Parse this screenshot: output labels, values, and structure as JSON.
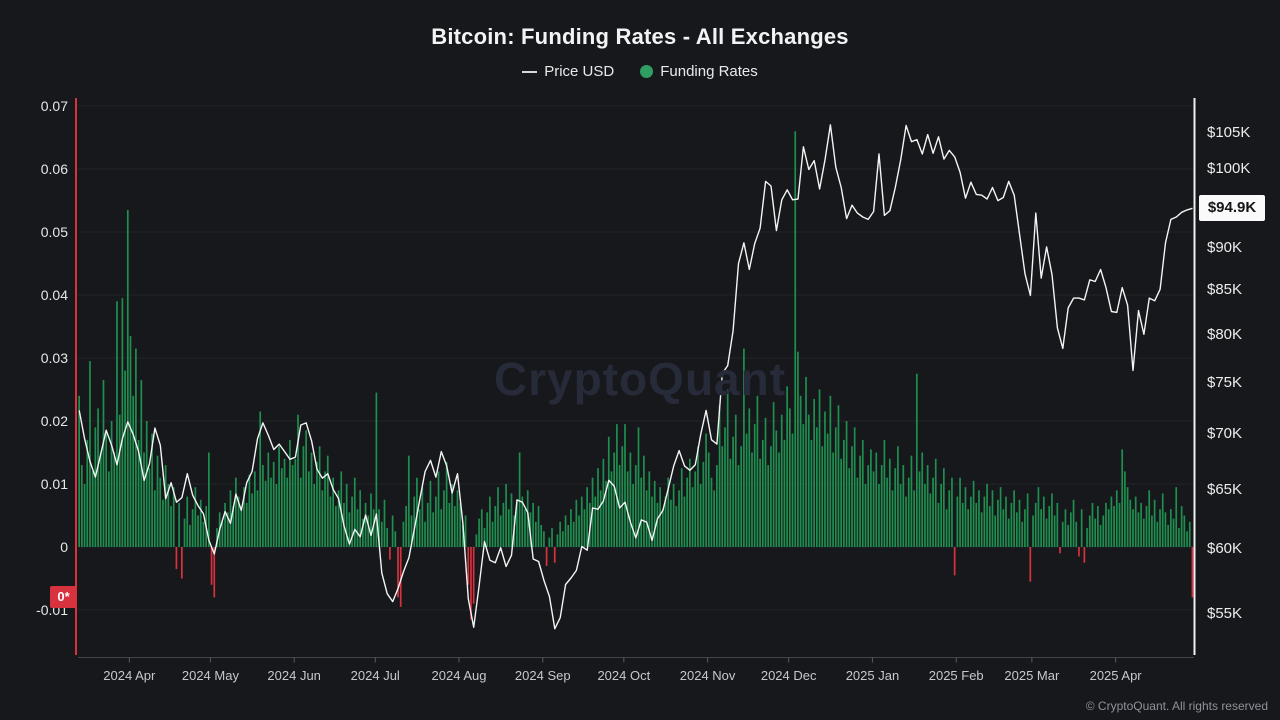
{
  "title": "Bitcoin: Funding Rates - All Exchanges",
  "watermark": "CryptoQuant",
  "footer": "© CryptoQuant. All rights reserved",
  "legend": [
    {
      "label": "Price USD",
      "marker": "line",
      "color": "#d8d9db"
    },
    {
      "label": "Funding Rates",
      "marker": "dot",
      "color": "#2f9e63"
    }
  ],
  "badges": {
    "funding_current": "0*",
    "price_current": "$94.9K"
  },
  "colors": {
    "background": "#17181b",
    "grid": "#222329",
    "funding_positive": "#1e8f4f",
    "funding_negative": "#d7323e",
    "price_line": "#f4f4f5",
    "left_axis_line": "#d7323e",
    "right_axis_line": "#eef0f2",
    "bottom_axis_line": "#43444a",
    "badge_funding_bg": "#d7323e",
    "badge_price_bg": "#fafafa"
  },
  "axes": {
    "left_ticks": [
      {
        "label": "0.07",
        "v": 0.07
      },
      {
        "label": "0.06",
        "v": 0.06
      },
      {
        "label": "0.05",
        "v": 0.05
      },
      {
        "label": "0.04",
        "v": 0.04
      },
      {
        "label": "0.03",
        "v": 0.03
      },
      {
        "label": "0.02",
        "v": 0.02
      },
      {
        "label": "0.01",
        "v": 0.01
      },
      {
        "label": "0",
        "v": 0
      },
      {
        "label": "-0.01",
        "v": -0.01
      }
    ],
    "right_ticks": [
      {
        "label": "$105K",
        "k": 105
      },
      {
        "label": "$100K",
        "k": 100
      },
      {
        "label": "$90K",
        "k": 90
      },
      {
        "label": "$85K",
        "k": 85
      },
      {
        "label": "$80K",
        "k": 80
      },
      {
        "label": "$75K",
        "k": 75
      },
      {
        "label": "$70K",
        "k": 70
      },
      {
        "label": "$65K",
        "k": 65
      },
      {
        "label": "$60K",
        "k": 60
      },
      {
        "label": "$55K",
        "k": 55
      }
    ],
    "x_ticks": [
      {
        "label": "2024 Apr",
        "day": 19
      },
      {
        "label": "2024 May",
        "day": 49
      },
      {
        "label": "2024 Jun",
        "day": 80
      },
      {
        "label": "2024 Jul",
        "day": 110
      },
      {
        "label": "2024 Aug",
        "day": 141
      },
      {
        "label": "2024 Sep",
        "day": 172
      },
      {
        "label": "2024 Oct",
        "day": 202
      },
      {
        "label": "2024 Nov",
        "day": 233
      },
      {
        "label": "2024 Dec",
        "day": 263
      },
      {
        "label": "2025 Jan",
        "day": 294
      },
      {
        "label": "2025 Feb",
        "day": 325
      },
      {
        "label": "2025 Mar",
        "day": 353
      },
      {
        "label": "2025 Apr",
        "day": 384
      }
    ]
  },
  "chart_data": {
    "type": "mixed",
    "title": "Bitcoin: Funding Rates - All Exchanges",
    "left_axis": {
      "series": "Funding Rates",
      "range": [
        -0.015,
        0.07
      ],
      "ticks": [
        0.07,
        0.06,
        0.05,
        0.04,
        0.03,
        0.02,
        0.01,
        0,
        -0.01
      ]
    },
    "right_axis": {
      "series": "Price USD",
      "scale": "log",
      "ticks_usd_k": [
        105,
        100,
        90,
        85,
        80,
        75,
        70,
        65,
        60,
        55
      ]
    },
    "x_axis": {
      "ticks": [
        "2024 Apr",
        "2024 May",
        "2024 Jun",
        "2024 Jul",
        "2024 Aug",
        "2024 Sep",
        "2024 Oct",
        "2024 Nov",
        "2024 Dec",
        "2025 Jan",
        "2025 Feb",
        "2025 Mar",
        "2025 Apr"
      ]
    },
    "legend_position": "top-center",
    "grid": true,
    "last_values": {
      "funding_rate": -0.008,
      "funding_label": "0*",
      "price_usd_k": 94.9,
      "price_label": "$94.9K"
    },
    "series": [
      {
        "name": "Funding Rates",
        "type": "bar",
        "cadence_days": 1,
        "unit": 0.001,
        "note": "values are funding rate x1000, estimated from bars; day 0 = chart left edge (mid-March 2024)",
        "values": [
          24,
          13,
          10,
          17,
          29.5,
          12,
          19,
          22,
          15,
          26.5,
          18,
          12,
          20,
          15,
          39,
          21,
          39.5,
          28,
          53.5,
          33.5,
          24,
          31.5,
          17,
          26.5,
          15,
          20,
          12.5,
          18,
          9,
          14.5,
          11,
          7.5,
          13,
          10,
          6.5,
          9.5,
          -3.5,
          7,
          -5,
          4.5,
          8,
          3.5,
          6,
          9.5,
          5,
          7.5,
          4,
          6.5,
          15,
          -6,
          -8,
          3,
          5.5,
          4,
          7,
          5.5,
          9,
          6.5,
          11,
          8,
          6,
          9.5,
          7,
          11.5,
          8.5,
          12,
          9,
          21.5,
          13,
          10.5,
          15,
          11,
          13.5,
          10,
          16,
          12.5,
          14,
          11,
          17,
          13,
          14,
          21,
          11,
          16,
          18.5,
          12,
          15,
          10,
          13.5,
          16,
          9,
          12,
          14.5,
          8,
          11,
          6.5,
          9,
          12,
          7,
          10,
          5.5,
          8,
          11,
          6,
          9,
          4.5,
          7,
          5,
          8.5,
          6,
          24.5,
          6,
          4,
          7.5,
          3,
          -2,
          5,
          2.5,
          -8,
          -9.5,
          4,
          6.5,
          14.5,
          5,
          8,
          11,
          6,
          9.5,
          4,
          7,
          10.5,
          5.5,
          8,
          12,
          6,
          9,
          13.5,
          7,
          10,
          6.5,
          9,
          7,
          3.5,
          5,
          -6,
          -11.5,
          -9,
          2,
          4.5,
          6,
          3,
          5.5,
          8,
          4,
          6.5,
          9.5,
          5,
          7,
          10,
          6,
          8.5,
          5,
          7.5,
          15,
          8,
          6,
          9,
          5.5,
          7,
          4,
          6.5,
          3.5,
          2.5,
          -3,
          1.5,
          3,
          -2.5,
          2,
          4,
          2.5,
          5,
          3.5,
          6,
          4,
          7.5,
          5,
          8,
          6,
          9.5,
          7,
          11,
          8,
          12.5,
          9,
          14,
          10.5,
          17.5,
          12,
          15,
          19.5,
          13,
          16,
          19.5,
          12,
          15,
          10,
          13,
          19,
          11,
          14.5,
          9,
          12,
          8,
          10.5,
          7,
          9.5,
          6,
          8,
          11,
          7.5,
          10,
          6.5,
          9,
          12.5,
          8,
          11,
          14,
          9.5,
          12,
          16,
          10,
          13.5,
          18,
          15,
          11,
          9,
          13,
          22.5,
          16,
          19,
          25,
          14,
          17.5,
          21,
          13,
          16,
          31.5,
          18,
          22,
          15,
          19.5,
          24,
          14,
          17,
          20.5,
          13,
          16,
          23,
          18.5,
          15,
          21,
          17,
          25.5,
          22,
          18,
          66,
          31,
          24,
          19.5,
          27,
          21,
          17,
          23.5,
          19,
          25,
          16,
          21.5,
          18,
          24,
          15,
          19,
          22.5,
          14,
          17,
          20,
          12.5,
          16,
          19,
          11,
          14.5,
          17,
          10,
          13,
          15.5,
          12,
          15,
          10,
          13,
          17,
          11,
          14,
          9,
          12.5,
          16,
          10,
          13,
          8,
          11,
          14.5,
          9,
          27.5,
          12,
          15,
          10,
          13,
          8.5,
          11,
          14,
          7,
          10,
          12.5,
          6,
          9,
          11,
          -4.5,
          8,
          11,
          7,
          9.5,
          6,
          8,
          10.5,
          7,
          9,
          5.5,
          8,
          10,
          6.5,
          9,
          5,
          7.5,
          9.5,
          6,
          8,
          4.5,
          7,
          9,
          5.5,
          7.5,
          4,
          6,
          8.5,
          -5.5,
          5,
          7,
          9.5,
          6,
          8,
          4.5,
          6.5,
          8.5,
          5,
          7,
          -1,
          4,
          6,
          3.5,
          5.5,
          7.5,
          4,
          -1.5,
          6,
          -2.5,
          3,
          5,
          7,
          4.5,
          6.5,
          3.5,
          5,
          7,
          6,
          8,
          6.5,
          9,
          7,
          15.5,
          12,
          9.5,
          7.5,
          6,
          8,
          5.5,
          7,
          4.5,
          6.5,
          9,
          5,
          7.5,
          4,
          6,
          8.5,
          5.5,
          3.5,
          6,
          4.5,
          9.5,
          3,
          6.5,
          5,
          2.5,
          4,
          -8
        ]
      },
      {
        "name": "Price USD",
        "type": "line",
        "cadence_days": 2,
        "unit": "USD thousands",
        "note": "price in $K sampled every 2 days, estimated from line",
        "values": [
          72.3,
          69.6,
          67.5,
          66.1,
          68.2,
          70.4,
          69,
          67.2,
          69.6,
          71.2,
          70,
          68.4,
          65.8,
          67.3,
          70.6,
          69,
          64.2,
          65.6,
          63.9,
          64.3,
          66.4,
          64.5,
          63.6,
          62.9,
          60.7,
          59.6,
          61.6,
          63.1,
          62.1,
          64.6,
          63.2,
          65.6,
          66.6,
          69.6,
          71.1,
          69.9,
          68.6,
          69.1,
          68.4,
          67.7,
          67.9,
          70.9,
          71.1,
          69.4,
          66.8,
          66,
          66.4,
          65,
          64.2,
          61.9,
          60.4,
          61.6,
          61,
          62.8,
          61.1,
          62.9,
          58.1,
          56.5,
          55.9,
          56.9,
          58.2,
          59.3,
          61.6,
          64.1,
          66.6,
          67.6,
          66.1,
          68.4,
          67.1,
          64.7,
          66.4,
          62.1,
          56.1,
          54,
          57.1,
          60.6,
          59.1,
          58.9,
          60.1,
          58.6,
          59.5,
          64.1,
          63.9,
          63,
          59.2,
          59,
          57.5,
          56.3,
          53.9,
          54.7,
          57.2,
          57.7,
          58.3,
          60.2,
          59.9,
          63.4,
          63.3,
          64,
          65.8,
          65.3,
          63.4,
          63.9,
          62.2,
          60.9,
          62.4,
          62.2,
          60.7,
          62.5,
          63.2,
          65.1,
          67.1,
          68.5,
          67.1,
          66.7,
          67.2,
          70,
          72.3,
          69.5,
          69.1,
          76,
          76.8,
          80.5,
          88.1,
          90.6,
          87.4,
          90.5,
          92.4,
          98.4,
          97.8,
          92.1,
          96,
          97.3,
          96,
          96.1,
          103.1,
          100,
          101.2,
          97.4,
          101.3,
          106.2,
          100.3,
          97.6,
          93.6,
          95.3,
          94.3,
          93.8,
          93.5,
          94.5,
          102.1,
          94,
          94.6,
          97.6,
          101.3,
          106.1,
          103.8,
          104.1,
          102.1,
          104.8,
          102.2,
          104.5,
          101.4,
          102.6,
          101.7,
          99.6,
          96.2,
          98.3,
          96.7,
          96.6,
          96.1,
          97.6,
          95.9,
          96.3,
          98.4,
          96.6,
          91.6,
          86.9,
          84.4,
          94.3,
          86.4,
          90.1,
          86.8,
          80.8,
          78.6,
          83,
          84.1,
          84.1,
          83.9,
          86.2,
          86,
          87.4,
          85.3,
          82.6,
          82.5,
          85.3,
          83.3,
          76.3,
          82.7,
          80.1,
          84.1,
          83.8,
          85.1,
          90.6,
          93.5,
          93.8,
          94.4,
          94.7,
          94.9
        ]
      }
    ]
  }
}
